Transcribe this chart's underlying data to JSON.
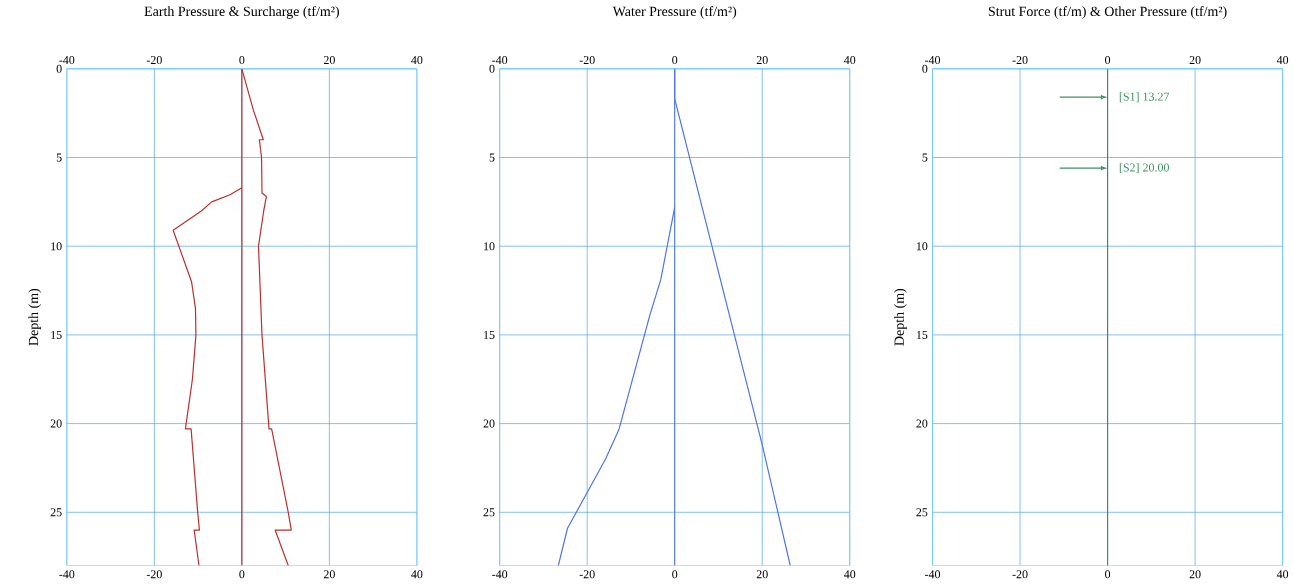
{
  "chart_data": [
    {
      "type": "line",
      "title": "Earth Pressure & Surcharge (tf/m²)",
      "ylabel": "Depth (m)",
      "xlim": [
        -40,
        40
      ],
      "xticks": [
        -40,
        -20,
        0,
        20,
        40
      ],
      "x2lim": [
        -40,
        40
      ],
      "x2ticks": [
        -40,
        -20,
        0,
        20,
        40
      ],
      "ylim": [
        28,
        0
      ],
      "yticks": [
        0,
        5,
        10,
        15,
        20,
        25
      ],
      "grid": true,
      "ref_lines": [
        {
          "axis": "x",
          "value": 0,
          "color": "#b5312d"
        }
      ],
      "series": [
        {
          "color": "#b5312d",
          "x": [
            0,
            2.6,
            4.9,
            4.0,
            4.5,
            4.6,
            5.6,
            5.0,
            3.8,
            4.6,
            6.2,
            6.8,
            10.6,
            11.3,
            7.6,
            10.6
          ],
          "values": [
            0,
            2.3,
            4.0,
            4.0,
            5,
            7.0,
            7.2,
            8.0,
            10,
            15,
            20.3,
            20.3,
            25,
            26,
            26,
            28
          ]
        },
        {
          "color": "#b5312d",
          "x": [
            0,
            -2.7,
            -6.9,
            -9.2,
            -15.7,
            -14.4,
            -11.5,
            -10.6,
            -10.5,
            -11.3,
            -12.9,
            -11.6,
            -10.1,
            -9.7,
            -10.9,
            -9.8
          ],
          "values": [
            6.7,
            7.1,
            7.5,
            8.0,
            9.1,
            10,
            12,
            13.5,
            15,
            17.5,
            20.3,
            20.3,
            25,
            26,
            26,
            28
          ]
        }
      ]
    },
    {
      "type": "line",
      "title": "Water Pressure (tf/m²)",
      "xlim": [
        -40,
        40
      ],
      "xticks": [
        -40,
        -20,
        0,
        20,
        40
      ],
      "x2lim": [
        -40,
        40
      ],
      "x2ticks": [
        -40,
        -20,
        0,
        20,
        40
      ],
      "ylim": [
        28,
        0
      ],
      "yticks": [
        0,
        5,
        10,
        15,
        20,
        25
      ],
      "grid": true,
      "ref_lines": [
        {
          "axis": "x",
          "value": 0,
          "color": "#4f74e3"
        }
      ],
      "series": [
        {
          "color": "#4f74e3",
          "x": [
            0,
            0,
            20.0,
            26.4
          ],
          "values": [
            0,
            1.7,
            21.2,
            28
          ]
        },
        {
          "color": "#4f74e3",
          "x": [
            0,
            -3.2,
            -5.7,
            -12.7,
            -15.8,
            -24.5,
            -26.6
          ],
          "values": [
            7.8,
            11.9,
            13.9,
            20.3,
            22,
            25.9,
            28
          ]
        }
      ]
    },
    {
      "type": "line",
      "title": "Strut Force (tf/m) & Other Pressure (tf/m²)",
      "ylabel": "Depth (m)",
      "xlim": [
        -40,
        40
      ],
      "xticks": [
        -40,
        -20,
        0,
        20,
        40
      ],
      "x2lim": [
        -40,
        40
      ],
      "x2ticks": [
        -40,
        -20,
        0,
        20,
        40
      ],
      "ylim": [
        28,
        0
      ],
      "yticks": [
        0,
        5,
        10,
        15,
        20,
        25
      ],
      "grid": true,
      "ref_lines": [
        {
          "axis": "x",
          "value": 0,
          "color": "#3a8f5e"
        }
      ],
      "annotations": [
        {
          "text": "[S1] 13.27",
          "x": 0,
          "y": 1.6
        },
        {
          "text": "[S2] 20.00",
          "x": 0,
          "y": 5.6
        }
      ]
    }
  ]
}
